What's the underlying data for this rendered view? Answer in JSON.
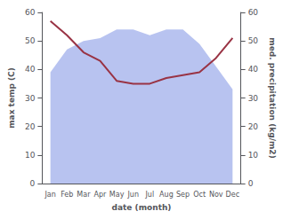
{
  "chart_data": {
    "type": "line",
    "xlabel": "date (month)",
    "ylabel": "max temp (C)",
    "y2label": "med. precipitation (kg/m2)",
    "categories": [
      "Jan",
      "Feb",
      "Mar",
      "Apr",
      "May",
      "Jun",
      "Jul",
      "Aug",
      "Sep",
      "Oct",
      "Nov",
      "Dec"
    ],
    "series": [
      {
        "type": "area",
        "color": "#b0bcee",
        "values": [
          39,
          47,
          50,
          51,
          54,
          54,
          52,
          54,
          54,
          49,
          41,
          33
        ]
      },
      {
        "type": "line",
        "axis": "y2",
        "color": "#993344",
        "values": [
          57,
          52,
          46,
          43,
          36,
          35,
          35,
          37,
          38,
          39,
          44,
          51
        ]
      }
    ],
    "ylim": [
      0,
      60
    ],
    "yticks": [
      0,
      10,
      20,
      30,
      40,
      50,
      60
    ],
    "y2lim": [
      0,
      60
    ],
    "y2ticks": [
      0,
      10,
      20,
      30,
      40,
      50,
      60
    ],
    "grid": false
  }
}
